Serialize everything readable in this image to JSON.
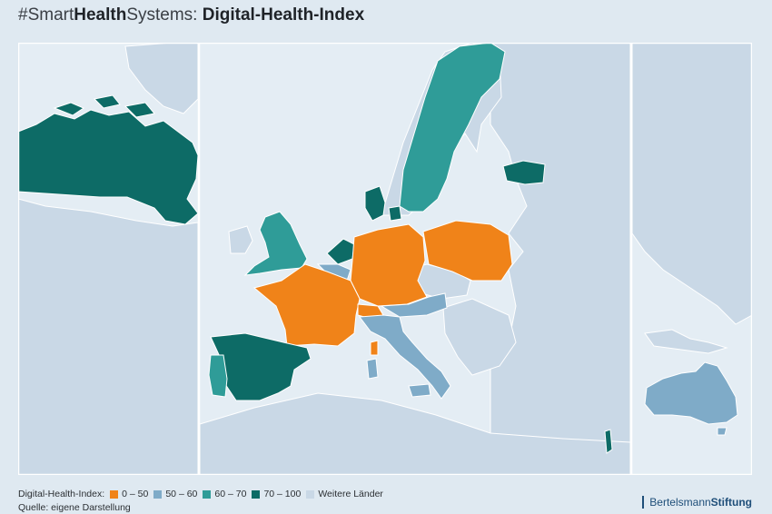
{
  "header": {
    "title_prefix": "#Smart",
    "title_bold1": "Health",
    "title_mid": "Systems: ",
    "title_bold2": "Digital-Health-Index"
  },
  "legend": {
    "label": "Digital-Health-Index:",
    "items": [
      {
        "label": "0 – 50",
        "color": "#f08319"
      },
      {
        "label": "50 – 60",
        "color": "#7fabc8"
      },
      {
        "label": "60 – 70",
        "color": "#2f9c98"
      },
      {
        "label": "70 – 100",
        "color": "#0d6b66"
      },
      {
        "label": "Weitere Länder",
        "color": "#c9d8e6"
      }
    ]
  },
  "source": "Quelle: eigene Darstellung",
  "brand": {
    "light": "Bertelsmann",
    "bold": "Stiftung"
  },
  "colors": {
    "sea": "#e4edf4",
    "land": "#c9d8e6",
    "border": "#ffffff"
  }
}
